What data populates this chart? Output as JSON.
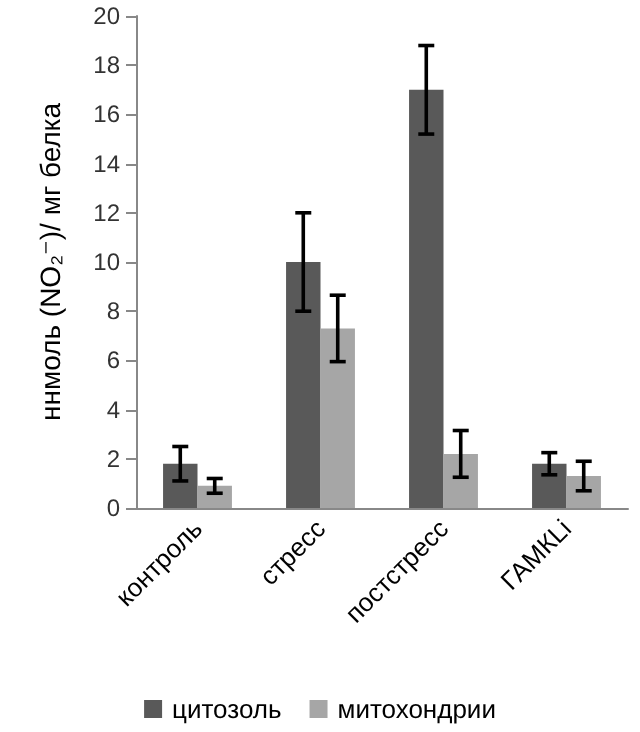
{
  "chart_data": {
    "type": "bar",
    "ylabel": "ннмоль (NO₂⁻)/ мг белка",
    "categories": [
      "контроль",
      "стресс",
      "постстресс",
      "ГАМКLi"
    ],
    "series": [
      {
        "name": "цитозоль",
        "color": "#595959",
        "values": [
          1.8,
          10,
          17,
          1.8
        ],
        "errors": [
          0.7,
          2,
          1.8,
          0.45
        ]
      },
      {
        "name": "митохондрии",
        "color": "#a6a6a6",
        "values": [
          0.9,
          7.3,
          2.2,
          1.3
        ],
        "errors": [
          0.3,
          1.35,
          0.95,
          0.6
        ]
      }
    ],
    "ylim": [
      0,
      20
    ],
    "yticks": [
      0,
      2,
      4,
      6,
      8,
      10,
      12,
      14,
      16,
      18,
      20
    ],
    "grid": false,
    "legend": "bottom"
  }
}
